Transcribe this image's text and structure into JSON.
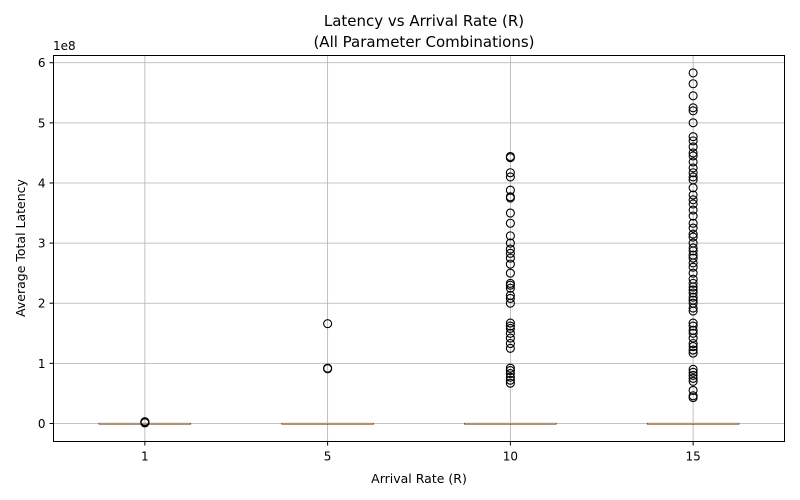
{
  "chart_data": {
    "type": "box",
    "title_line1": "Latency vs Arrival Rate (R)",
    "title_line2": "(All Parameter Combinations)",
    "xlabel": "Arrival Rate (R)",
    "ylabel": "Average Total Latency",
    "y_offset_text": "1e8",
    "y_scale": 100000000,
    "categories": [
      "1",
      "5",
      "10",
      "15"
    ],
    "ylim": [
      -0.3,
      6.12
    ],
    "yticks": [
      0,
      1,
      2,
      3,
      4,
      5,
      6
    ],
    "grid": true,
    "median_color": "#ff7f0e",
    "boxes": [
      {
        "category": "1",
        "median": 0,
        "q1": 0,
        "q3": 0,
        "whisker_low": 0,
        "whisker_high": 0,
        "fliers": [
          0.01,
          0.015,
          0.02,
          0.025,
          0.03
        ]
      },
      {
        "category": "5",
        "median": 0,
        "q1": 0,
        "q3": 0,
        "whisker_low": 0,
        "whisker_high": 0,
        "fliers": [
          0.91,
          0.92,
          1.66
        ]
      },
      {
        "category": "10",
        "median": 0,
        "q1": 0,
        "q3": 0,
        "whisker_low": 0,
        "whisker_high": 0,
        "fliers": [
          0.67,
          0.72,
          0.77,
          0.83,
          0.88,
          0.92,
          1.25,
          1.33,
          1.42,
          1.5,
          1.58,
          1.62,
          1.67,
          2.0,
          2.08,
          2.13,
          2.25,
          2.3,
          2.33,
          2.5,
          2.65,
          2.75,
          2.83,
          2.9,
          3.0,
          3.12,
          3.33,
          3.5,
          3.75,
          3.77,
          3.88,
          4.1,
          4.17,
          4.42,
          4.44
        ]
      },
      {
        "category": "15",
        "median": 0,
        "q1": 0,
        "q3": 0,
        "whisker_low": 0,
        "whisker_high": 0,
        "fliers": [
          0.43,
          0.46,
          0.55,
          0.7,
          0.75,
          0.8,
          0.85,
          0.9,
          1.17,
          1.22,
          1.28,
          1.33,
          1.42,
          1.5,
          1.55,
          1.62,
          1.67,
          1.87,
          1.92,
          2.0,
          2.05,
          2.1,
          2.17,
          2.22,
          2.27,
          2.33,
          2.4,
          2.5,
          2.6,
          2.67,
          2.75,
          2.8,
          2.87,
          2.92,
          3.0,
          3.1,
          3.15,
          3.25,
          3.33,
          3.45,
          3.55,
          3.65,
          3.72,
          3.8,
          3.92,
          4.05,
          4.1,
          4.17,
          4.25,
          4.35,
          4.45,
          4.5,
          4.6,
          4.7,
          4.77,
          5.0,
          5.2,
          5.25,
          5.45,
          5.65,
          5.83
        ]
      }
    ]
  }
}
